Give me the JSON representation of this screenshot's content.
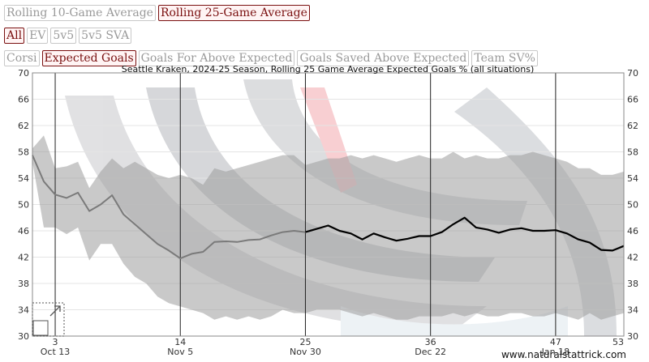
{
  "buttons": {
    "row1": [
      {
        "label": "Rolling 10-Game Average",
        "active": false
      },
      {
        "label": "Rolling 25-Game Average",
        "active": true
      }
    ],
    "row2": [
      {
        "label": "All",
        "active": true
      },
      {
        "label": "EV",
        "active": false
      },
      {
        "label": "5v5",
        "active": false
      },
      {
        "label": "5v5 SVA",
        "active": false
      }
    ],
    "row3": [
      {
        "label": "Corsi",
        "active": false
      },
      {
        "label": "Expected Goals",
        "active": true
      },
      {
        "label": "Goals For Above Expected",
        "active": false
      },
      {
        "label": "Goals Saved Above Expected",
        "active": false
      },
      {
        "label": "Team SV%",
        "active": false
      }
    ]
  },
  "watermark": "www.naturalstattrick.com",
  "colors": {
    "line_early": "#7a7a7a",
    "line_main": "#000000",
    "band": "#9c9c9c",
    "vline": "#222222",
    "active_btn": "#7a1010"
  },
  "chart_data": {
    "type": "line",
    "title": "Seattle Kraken, 2024-25 Season, Rolling 25 Game Average Expected Goals % (all situations)",
    "xlim": [
      1,
      53
    ],
    "ylim": [
      30,
      70
    ],
    "yticks": [
      30,
      34,
      38,
      42,
      46,
      50,
      54,
      58,
      62,
      66,
      70
    ],
    "xticks": [
      3,
      14,
      25,
      36,
      47,
      53
    ],
    "date_labels": [
      {
        "game": 3,
        "label": "Oct 13"
      },
      {
        "game": 14,
        "label": "Nov 5"
      },
      {
        "game": 25,
        "label": "Nov 30"
      },
      {
        "game": 36,
        "label": "Dec 22"
      },
      {
        "game": 47,
        "label": "Jan 18"
      }
    ],
    "vlines": [
      3,
      14,
      25,
      36,
      47
    ],
    "series": [
      {
        "role": "early",
        "x": [
          1,
          2,
          3,
          4,
          5,
          6,
          7,
          8,
          9,
          10,
          11,
          12,
          13,
          14,
          15,
          16,
          17,
          18,
          19,
          20,
          21,
          22,
          23,
          24,
          25
        ],
        "values": [
          57.5,
          53.5,
          51.5,
          51.0,
          51.8,
          49.0,
          50.0,
          51.4,
          48.5,
          47.0,
          45.5,
          44.0,
          43.0,
          41.8,
          42.5,
          42.8,
          44.3,
          44.4,
          44.3,
          44.6,
          44.7,
          45.3,
          45.8,
          46.0,
          45.8
        ]
      },
      {
        "role": "main",
        "x": [
          25,
          26,
          27,
          28,
          29,
          30,
          31,
          32,
          33,
          34,
          35,
          36,
          37,
          38,
          39,
          40,
          41,
          42,
          43,
          44,
          45,
          46,
          47,
          48,
          49,
          50,
          51,
          52,
          53
        ],
        "values": [
          45.8,
          46.3,
          46.8,
          46.0,
          45.6,
          44.7,
          45.6,
          45.0,
          44.5,
          44.8,
          45.2,
          45.2,
          45.8,
          47.0,
          48.0,
          46.5,
          46.2,
          45.7,
          46.2,
          46.4,
          46.0,
          46.0,
          46.1,
          45.6,
          44.7,
          44.2,
          43.1,
          43.0,
          43.7
        ]
      }
    ],
    "band": {
      "x": [
        1,
        2,
        3,
        4,
        5,
        6,
        7,
        8,
        9,
        10,
        11,
        12,
        13,
        14,
        15,
        16,
        17,
        18,
        19,
        20,
        21,
        22,
        23,
        24,
        25,
        26,
        27,
        28,
        29,
        30,
        31,
        32,
        33,
        34,
        35,
        36,
        37,
        38,
        39,
        40,
        41,
        42,
        43,
        44,
        45,
        46,
        47,
        48,
        49,
        50,
        51,
        52,
        53
      ],
      "upper": [
        58.5,
        60.5,
        55.5,
        55.8,
        56.5,
        52.5,
        55.0,
        57.0,
        55.5,
        56.5,
        55.5,
        54.5,
        54.0,
        54.5,
        54.0,
        53.0,
        55.5,
        55.0,
        55.5,
        56.0,
        56.5,
        57.0,
        57.5,
        57.5,
        56.0,
        56.5,
        57.0,
        57.0,
        57.5,
        57.0,
        57.5,
        57.0,
        56.5,
        57.0,
        57.5,
        57.0,
        57.0,
        58.0,
        57.0,
        57.5,
        57.0,
        57.0,
        57.5,
        57.5,
        58.0,
        57.5,
        57.0,
        56.5,
        55.5,
        55.5,
        54.5,
        54.5,
        55.0
      ],
      "lower": [
        56.5,
        46.5,
        46.5,
        45.5,
        46.5,
        41.5,
        44.0,
        44.0,
        41.0,
        39.0,
        38.0,
        36.0,
        35.0,
        34.5,
        34.0,
        33.5,
        32.5,
        33.0,
        32.5,
        33.0,
        32.5,
        33.0,
        34.0,
        33.5,
        33.5,
        34.0,
        34.0,
        34.0,
        33.5,
        33.0,
        33.5,
        33.0,
        32.5,
        32.5,
        33.0,
        33.0,
        33.0,
        33.5,
        33.0,
        33.5,
        33.0,
        33.0,
        33.5,
        33.5,
        33.0,
        33.0,
        33.5,
        33.0,
        32.5,
        33.5,
        32.5,
        33.0,
        33.5
      ]
    }
  }
}
